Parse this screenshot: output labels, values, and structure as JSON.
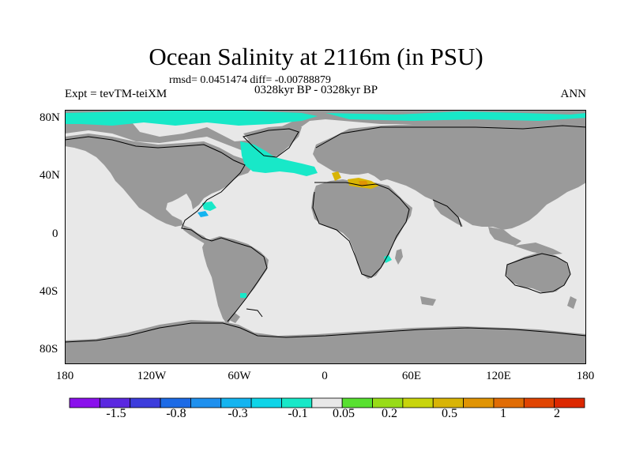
{
  "title": "Ocean Salinity at 2116m (in PSU)",
  "stats_line": "rmsd= 0.0451474 diff= -0.00788879",
  "period": "0328kyr BP - 0328kyr BP",
  "left_label": "Expt = tevTM-teiXM",
  "right_label": "ANN",
  "lat_labels": [
    "80N",
    "40N",
    "0",
    "40S",
    "80S"
  ],
  "lon_labels": [
    "180",
    "120W",
    "60W",
    "0",
    "60E",
    "120E",
    "180"
  ],
  "colorbar": {
    "colors": [
      "#8a10ec",
      "#5a28e0",
      "#3c3cdc",
      "#1c6ae6",
      "#1e90ee",
      "#14b4f0",
      "#0ed4e8",
      "#18e8c8",
      "#e8e8e8",
      "#58e030",
      "#98dc18",
      "#c8d40c",
      "#d8b406",
      "#e09404",
      "#e06c04",
      "#e04402",
      "#dc2800"
    ],
    "labels": [
      "-1.5",
      "-0.8",
      "-0.3",
      "-0.1",
      "0.05",
      "0.2",
      "0.5",
      "1",
      "2"
    ]
  },
  "map_colors": {
    "land": "#999999",
    "ocean": "#e8e8e8",
    "fresh_anomaly": "#18e8c8",
    "weak_fresh": "#14b4f0",
    "salty_anomaly": "#d8b406",
    "salty_strong": "#e09404"
  }
}
